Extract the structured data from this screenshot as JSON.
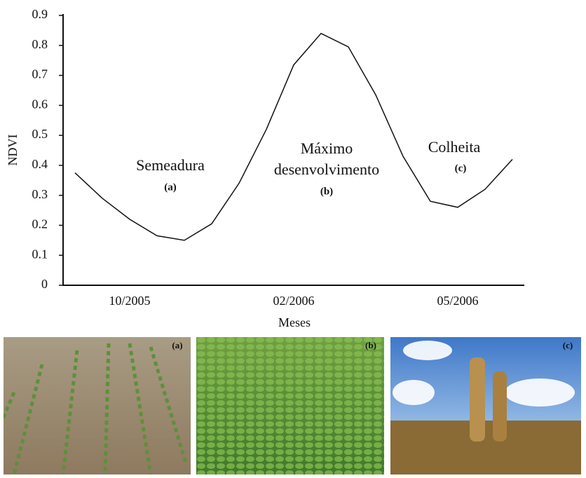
{
  "chart_data": {
    "type": "line",
    "ylabel": "NDVI",
    "xlabel": "Meses",
    "categories": [
      null,
      null,
      "10/2005",
      null,
      null,
      null,
      null,
      null,
      "02/2006",
      null,
      null,
      null,
      null,
      null,
      "05/2006",
      null,
      null
    ],
    "values": [
      0.375,
      0.29,
      0.22,
      0.165,
      0.15,
      0.205,
      0.34,
      0.52,
      0.735,
      0.84,
      0.795,
      0.635,
      0.43,
      0.28,
      0.26,
      0.32,
      0.42
    ],
    "color": "#111111",
    "ylim": [
      0,
      0.9
    ],
    "yticks": [
      0,
      0.1,
      0.2,
      0.3,
      0.4,
      0.5,
      0.6,
      0.7,
      0.8,
      0.9
    ],
    "annotations": [
      "Semeadura",
      "(a)",
      "Máximo",
      "desenvolvimento",
      "(b)",
      "Colheita",
      "(c)"
    ]
  },
  "photos": [
    {
      "label": "(a)"
    },
    {
      "label": "(b)"
    },
    {
      "label": "(c)"
    }
  ]
}
